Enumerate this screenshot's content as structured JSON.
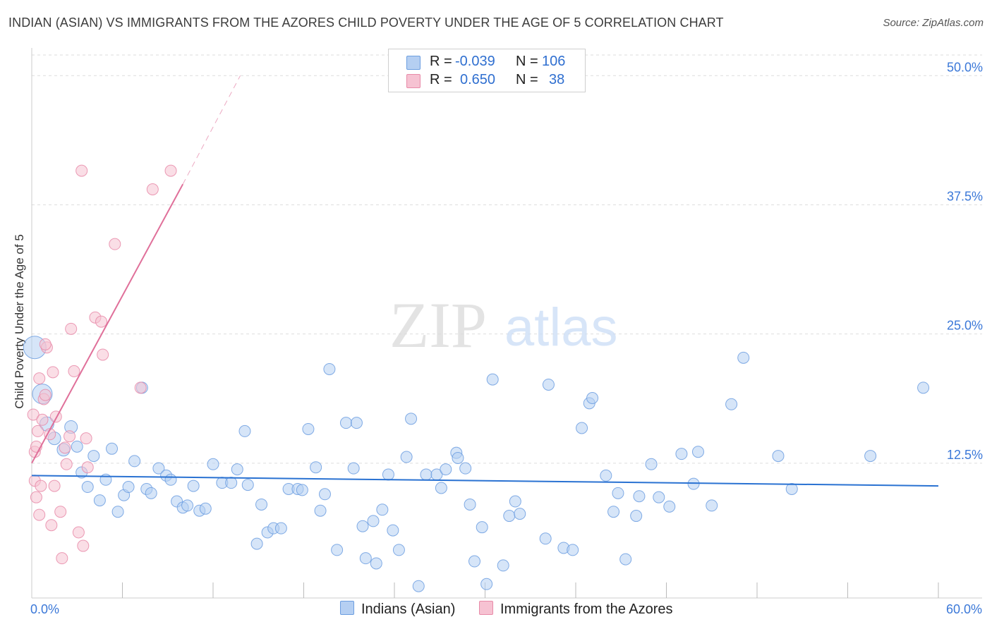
{
  "title": "INDIAN (ASIAN) VS IMMIGRANTS FROM THE AZORES CHILD POVERTY UNDER THE AGE OF 5 CORRELATION CHART",
  "source": "Source: ZipAtlas.com",
  "watermark": {
    "zip": "ZIP",
    "atlas": "atlas"
  },
  "colors": {
    "blue_fill": "#b5cff2",
    "blue_stroke": "#6c9ee0",
    "blue_line": "#2a72d2",
    "pink_fill": "#f6c2d2",
    "pink_stroke": "#e88aa8",
    "pink_line": "#e0709a",
    "tick_label": "#3b78d8",
    "grid": "#dddddd"
  },
  "legend": {
    "r_label": "R =",
    "n_label": "N =",
    "series": [
      {
        "r": "-0.039",
        "n": "106"
      },
      {
        "r": "0.650",
        "n": "38"
      }
    ]
  },
  "bottom_legend": [
    "Indians (Asian)",
    "Immigrants from the Azores"
  ],
  "chart_data": {
    "type": "scatter",
    "ylabel": "Child Poverty Under the Age of 5",
    "xlim": [
      0,
      60
    ],
    "ylim": [
      0,
      52
    ],
    "x_tick_labels": [
      {
        "v": 0,
        "t": "0.0%"
      },
      {
        "v": 60,
        "t": "60.0%"
      }
    ],
    "y_tick_labels": [
      {
        "v": 12.5,
        "t": "12.5%"
      },
      {
        "v": 25,
        "t": "25.0%"
      },
      {
        "v": 37.5,
        "t": "37.5%"
      },
      {
        "v": 50,
        "t": "50.0%"
      }
    ],
    "grid": true,
    "series": [
      {
        "name": "Indians (Asian)",
        "r": -0.039,
        "n": 106,
        "trend": {
          "x": [
            0,
            60
          ],
          "y": [
            11.3,
            10.3
          ]
        },
        "points": [
          [
            0.2,
            23.7,
            16
          ],
          [
            0.7,
            19.2,
            14
          ],
          [
            1.0,
            16.3,
            10
          ],
          [
            1.5,
            14.9,
            9
          ],
          [
            2.1,
            13.8,
            9
          ],
          [
            2.6,
            16.0,
            9
          ],
          [
            3.0,
            14.1,
            8
          ],
          [
            3.3,
            11.6,
            8
          ],
          [
            3.7,
            10.2,
            8
          ],
          [
            4.1,
            13.2,
            8
          ],
          [
            4.5,
            8.9,
            8
          ],
          [
            4.9,
            10.9,
            8
          ],
          [
            5.3,
            13.9,
            8
          ],
          [
            5.7,
            7.8,
            8
          ],
          [
            6.1,
            9.4,
            8
          ],
          [
            6.4,
            10.2,
            8
          ],
          [
            6.8,
            12.7,
            8
          ],
          [
            7.3,
            19.8,
            8
          ],
          [
            7.6,
            10.0,
            8
          ],
          [
            7.9,
            9.6,
            8
          ],
          [
            8.4,
            12.0,
            8
          ],
          [
            8.9,
            11.3,
            8
          ],
          [
            9.2,
            10.9,
            8
          ],
          [
            9.6,
            8.8,
            8
          ],
          [
            10.0,
            8.2,
            8
          ],
          [
            10.3,
            8.4,
            8
          ],
          [
            10.7,
            10.3,
            8
          ],
          [
            11.1,
            7.9,
            8
          ],
          [
            11.5,
            8.1,
            8
          ],
          [
            12.0,
            12.4,
            8
          ],
          [
            12.6,
            10.6,
            8
          ],
          [
            13.2,
            10.6,
            8
          ],
          [
            13.6,
            11.9,
            8
          ],
          [
            14.1,
            15.6,
            8
          ],
          [
            14.3,
            10.4,
            8
          ],
          [
            14.9,
            4.7,
            8
          ],
          [
            15.2,
            8.5,
            8
          ],
          [
            15.6,
            5.8,
            8
          ],
          [
            16.0,
            6.2,
            8
          ],
          [
            16.5,
            6.2,
            8
          ],
          [
            17.0,
            10.0,
            8
          ],
          [
            17.6,
            10.0,
            8
          ],
          [
            17.9,
            9.9,
            8
          ],
          [
            18.3,
            15.8,
            8
          ],
          [
            18.8,
            12.1,
            8
          ],
          [
            19.1,
            7.9,
            8
          ],
          [
            19.4,
            9.5,
            8
          ],
          [
            19.7,
            21.6,
            8
          ],
          [
            20.2,
            4.1,
            8
          ],
          [
            20.8,
            16.4,
            8
          ],
          [
            21.3,
            12.0,
            8
          ],
          [
            21.5,
            16.4,
            8
          ],
          [
            21.9,
            6.4,
            8
          ],
          [
            22.1,
            3.3,
            8
          ],
          [
            22.6,
            6.9,
            8
          ],
          [
            22.8,
            2.8,
            8
          ],
          [
            23.2,
            8.0,
            8
          ],
          [
            23.6,
            11.4,
            8
          ],
          [
            23.9,
            6.0,
            8
          ],
          [
            24.3,
            4.1,
            8
          ],
          [
            24.8,
            13.1,
            8
          ],
          [
            25.1,
            16.8,
            8
          ],
          [
            25.6,
            0.6,
            8
          ],
          [
            26.1,
            11.4,
            8
          ],
          [
            26.8,
            11.4,
            8
          ],
          [
            27.1,
            10.1,
            8
          ],
          [
            27.4,
            11.9,
            8
          ],
          [
            28.1,
            13.5,
            8
          ],
          [
            28.2,
            13.0,
            8
          ],
          [
            28.7,
            12.0,
            8
          ],
          [
            29.0,
            8.5,
            8
          ],
          [
            29.3,
            3.0,
            8
          ],
          [
            29.8,
            6.3,
            8
          ],
          [
            30.1,
            0.8,
            8
          ],
          [
            30.5,
            20.6,
            8
          ],
          [
            31.2,
            2.6,
            8
          ],
          [
            31.6,
            7.4,
            8
          ],
          [
            32.0,
            8.8,
            8
          ],
          [
            32.3,
            7.6,
            8
          ],
          [
            34.0,
            5.2,
            8
          ],
          [
            34.2,
            20.1,
            8
          ],
          [
            35.2,
            4.3,
            8
          ],
          [
            35.8,
            4.1,
            8
          ],
          [
            36.4,
            15.9,
            8
          ],
          [
            36.9,
            18.3,
            8
          ],
          [
            37.1,
            18.8,
            8
          ],
          [
            38.0,
            11.3,
            8
          ],
          [
            38.5,
            7.8,
            8
          ],
          [
            38.8,
            9.6,
            8
          ],
          [
            39.3,
            3.2,
            8
          ],
          [
            40.0,
            7.4,
            8
          ],
          [
            40.2,
            9.3,
            8
          ],
          [
            41.0,
            12.4,
            8
          ],
          [
            41.5,
            9.2,
            8
          ],
          [
            42.2,
            8.3,
            8
          ],
          [
            43.0,
            13.4,
            8
          ],
          [
            43.8,
            10.5,
            8
          ],
          [
            44.1,
            13.6,
            8
          ],
          [
            45.0,
            8.4,
            8
          ],
          [
            46.3,
            18.2,
            8
          ],
          [
            47.1,
            22.7,
            8
          ],
          [
            49.4,
            13.2,
            8
          ],
          [
            50.3,
            10.0,
            8
          ],
          [
            55.5,
            13.2,
            8
          ],
          [
            59.0,
            19.8,
            8
          ]
        ]
      },
      {
        "name": "Immigrants from the Azores",
        "r": 0.65,
        "n": 38,
        "trend": {
          "x": [
            0,
            10.0
          ],
          "y": [
            12.5,
            39.5
          ]
        },
        "trend_dashed": {
          "x": [
            10.0,
            13.8
          ],
          "y": [
            39.5,
            50.0
          ]
        },
        "points": [
          [
            0.1,
            17.2,
            8
          ],
          [
            0.2,
            13.6,
            8
          ],
          [
            0.2,
            10.8,
            8
          ],
          [
            0.3,
            9.2,
            8
          ],
          [
            0.4,
            15.6,
            8
          ],
          [
            0.5,
            20.7,
            8
          ],
          [
            0.5,
            7.5,
            8
          ],
          [
            0.6,
            10.3,
            8
          ],
          [
            0.7,
            16.7,
            8
          ],
          [
            0.8,
            18.7,
            8
          ],
          [
            0.9,
            19.1,
            8
          ],
          [
            1.0,
            23.7,
            8
          ],
          [
            1.2,
            15.3,
            8
          ],
          [
            1.3,
            6.5,
            8
          ],
          [
            1.4,
            21.3,
            8
          ],
          [
            1.5,
            10.3,
            8
          ],
          [
            1.6,
            17.0,
            8
          ],
          [
            1.9,
            7.8,
            8
          ],
          [
            2.0,
            3.3,
            8
          ],
          [
            2.2,
            14.0,
            8
          ],
          [
            2.3,
            12.4,
            8
          ],
          [
            2.5,
            15.1,
            8
          ],
          [
            2.6,
            25.5,
            8
          ],
          [
            2.8,
            21.4,
            8
          ],
          [
            3.1,
            5.8,
            8
          ],
          [
            3.4,
            4.5,
            8
          ],
          [
            3.6,
            14.9,
            8
          ],
          [
            3.7,
            12.1,
            8
          ],
          [
            3.3,
            40.8,
            8
          ],
          [
            4.2,
            26.6,
            8
          ],
          [
            4.6,
            26.2,
            8
          ],
          [
            4.7,
            23.0,
            8
          ],
          [
            5.5,
            33.7,
            8
          ],
          [
            7.2,
            19.8,
            8
          ],
          [
            8.0,
            39.0,
            8
          ],
          [
            9.2,
            40.8,
            8
          ],
          [
            0.3,
            14.1,
            8
          ],
          [
            0.9,
            24.0,
            8
          ]
        ]
      }
    ]
  }
}
